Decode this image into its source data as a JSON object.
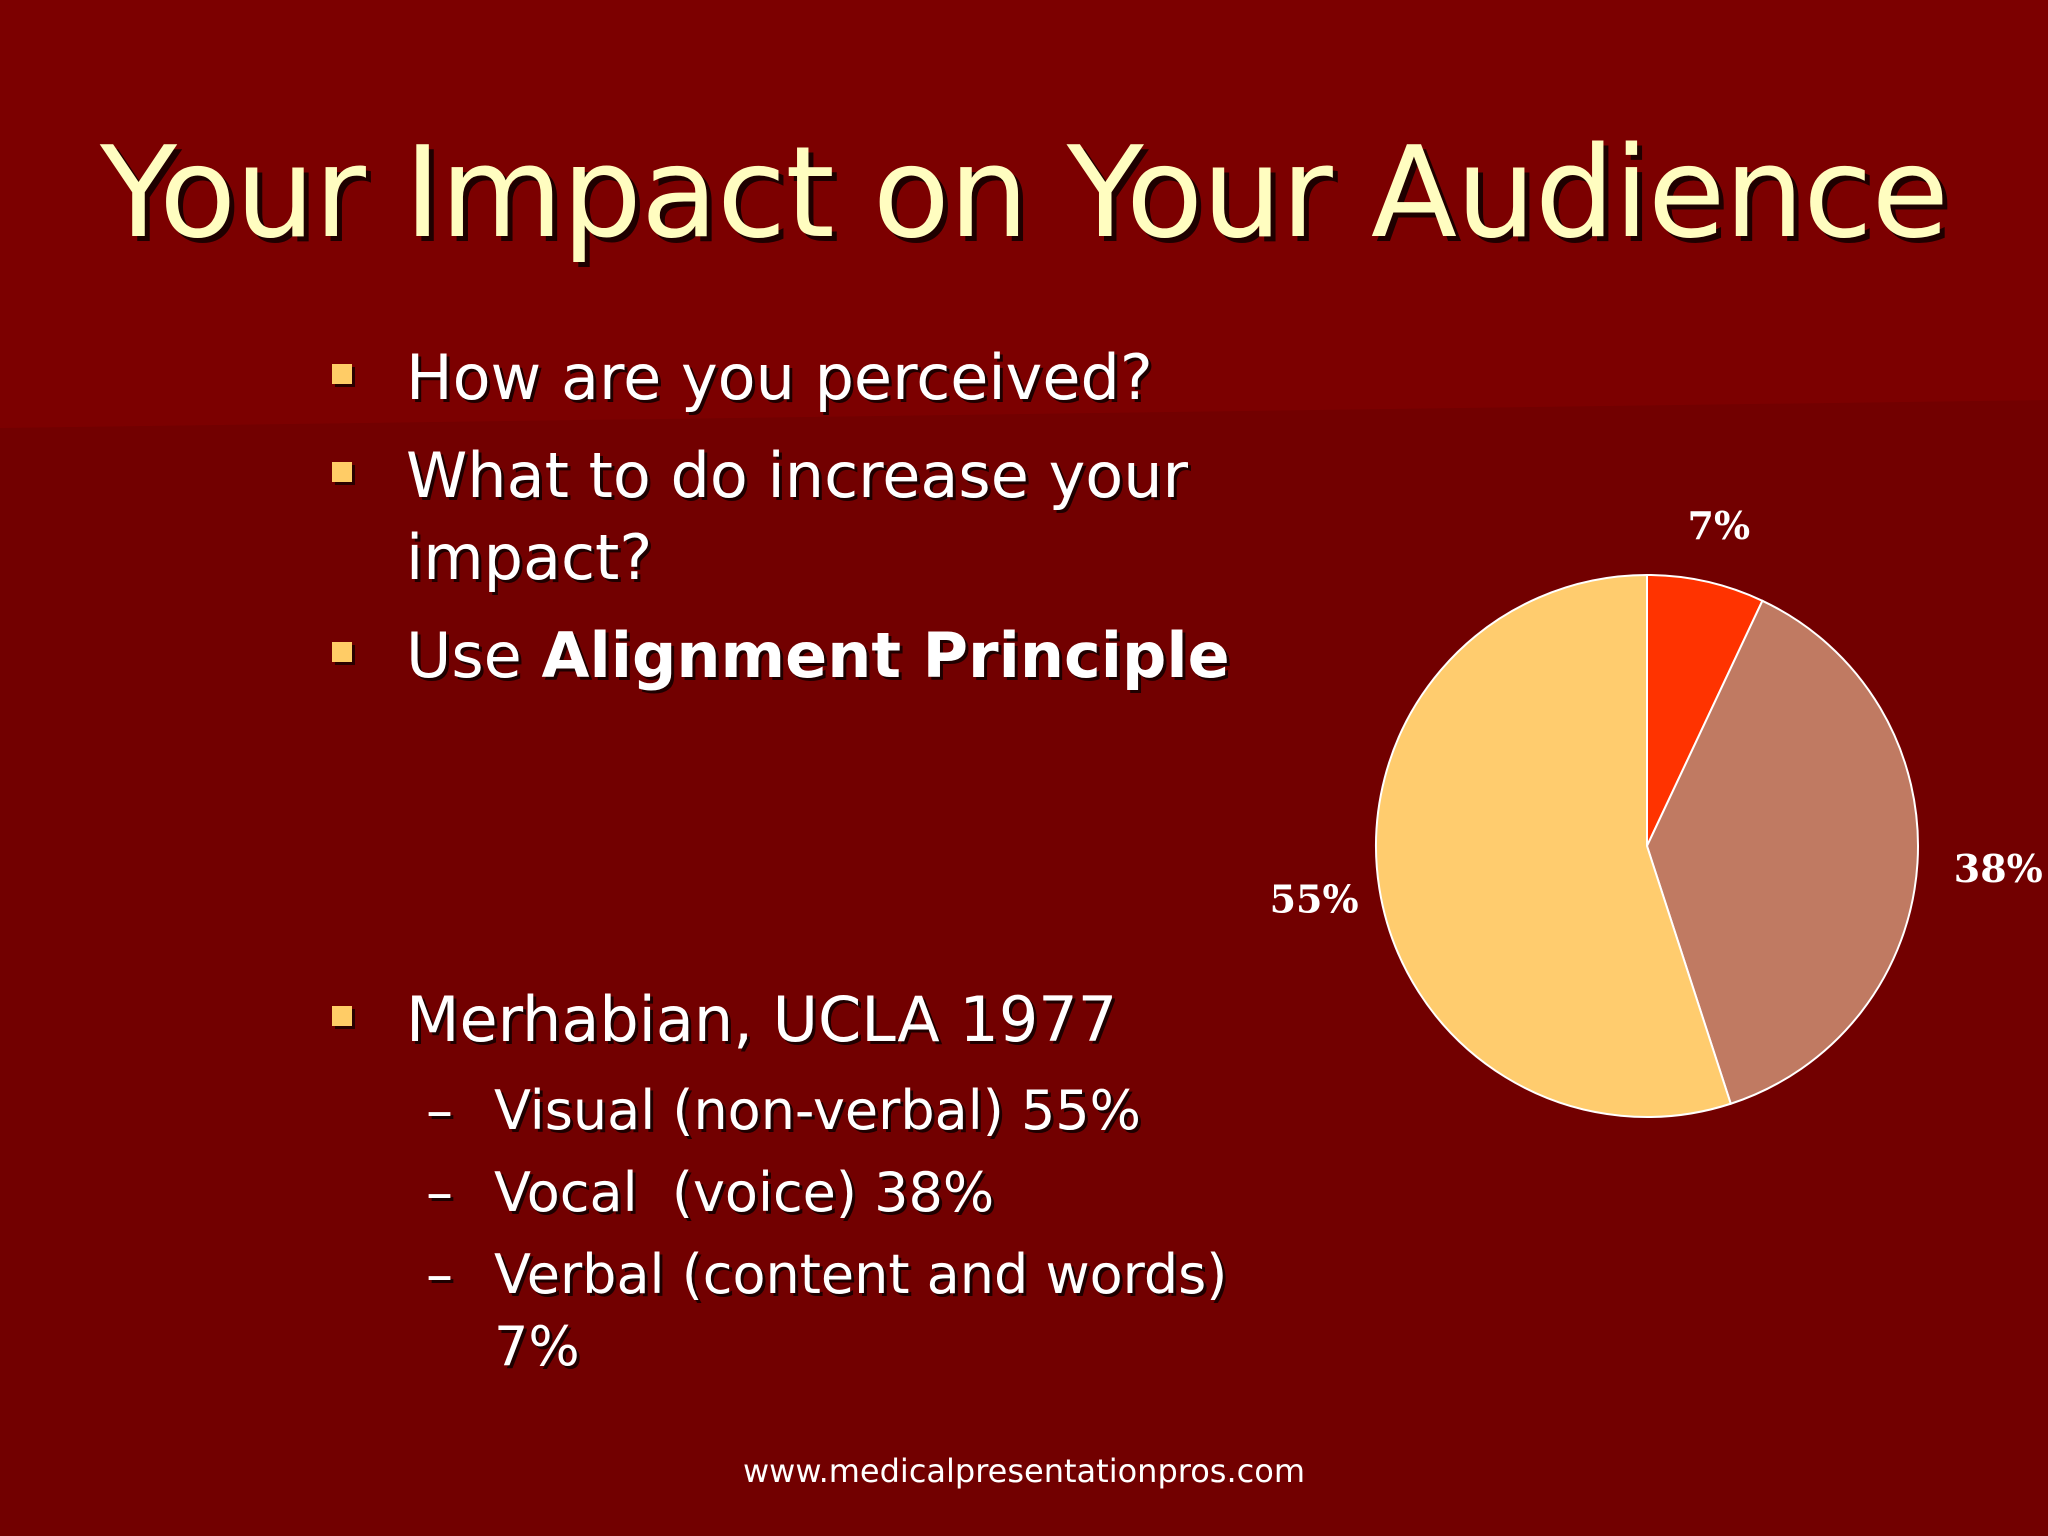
{
  "slide": {
    "title": "Your Impact on Your Audience",
    "bullets": [
      {
        "text": "How are you perceived?"
      },
      {
        "line1": "What to do increase your",
        "line2": "impact?"
      },
      {
        "prefix": "Use ",
        "bold": "Alignment Principle"
      },
      {
        "text": "Merhabian, UCLA 1977"
      }
    ],
    "sub_bullets": [
      {
        "dash": "–",
        "text": "Visual (non-verbal) 55%"
      },
      {
        "dash": "–",
        "text": "Vocal  (voice) 38%"
      },
      {
        "dash": "–",
        "line1": "Verbal (content and words)",
        "line2": "7%"
      }
    ],
    "footer": "www.medicalpresentationpros.com"
  },
  "colors": {
    "background": "#720000",
    "title": "#FFFDC0",
    "bullet_marker": "#FFCC66"
  },
  "chart_data": {
    "type": "pie",
    "start_angle_deg": 0,
    "direction": "clockwise",
    "slices": [
      {
        "label": "7%",
        "value": 7,
        "color": "#FF3300"
      },
      {
        "label": "38%",
        "value": 38,
        "color": "#C07A62"
      },
      {
        "label": "55%",
        "value": 55,
        "color": "#FFCC6E"
      }
    ]
  }
}
